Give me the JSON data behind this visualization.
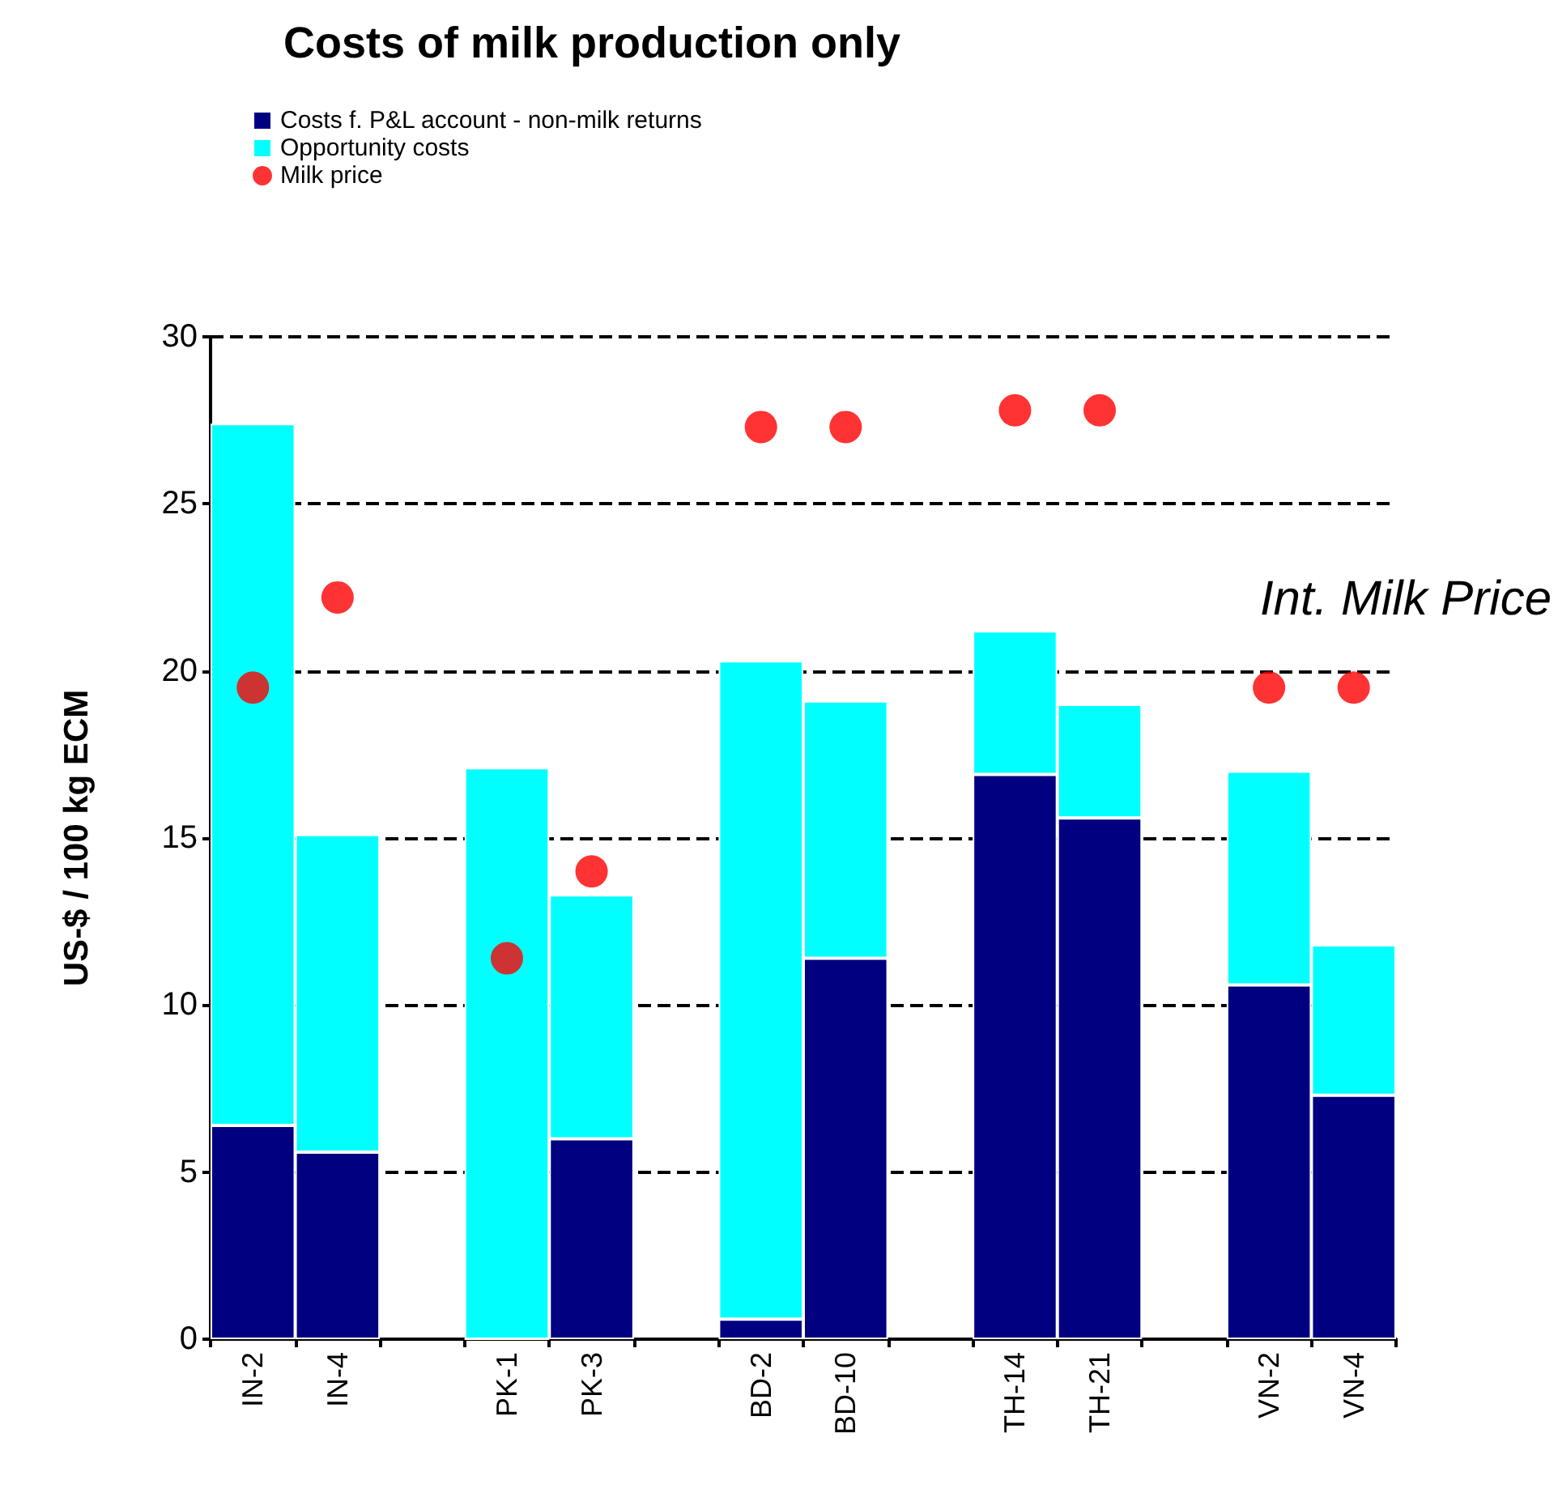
{
  "chart_data": {
    "type": "bar",
    "title": "Costs of milk production only",
    "ylabel": "US-$ / 100 kg ECM",
    "categories": [
      "IN-2",
      "IN-4",
      null,
      "PK-1",
      "PK-3",
      null,
      "BD-2",
      "BD-10",
      null,
      "TH-14",
      "TH-21",
      null,
      "VN-2",
      "VN-4"
    ],
    "stacked": true,
    "series": [
      {
        "name": "Costs f. P&L account - non-milk returns",
        "color": "#000080",
        "values": [
          6.4,
          5.6,
          null,
          0,
          6.0,
          null,
          0.6,
          11.4,
          null,
          16.9,
          15.6,
          null,
          10.6,
          7.3
        ]
      },
      {
        "name": "Opportunity costs",
        "color": "#00ffff",
        "values": [
          21.0,
          9.5,
          null,
          17.1,
          7.3,
          null,
          19.7,
          7.7,
          null,
          4.3,
          3.4,
          null,
          6.4,
          4.5
        ]
      },
      {
        "name": "Milk price",
        "type": "scatter",
        "color": "#ff0000",
        "marker": "circle",
        "values": [
          19.5,
          22.2,
          null,
          11.4,
          14.0,
          null,
          27.3,
          27.3,
          null,
          27.8,
          27.8,
          null,
          19.5,
          19.5
        ]
      }
    ],
    "annotations": [
      "Int. Milk Price"
    ],
    "ylim": [
      0,
      30
    ],
    "yticks": [
      0,
      5,
      10,
      15,
      20,
      25,
      30
    ],
    "grid": "y",
    "legend": "top left"
  }
}
